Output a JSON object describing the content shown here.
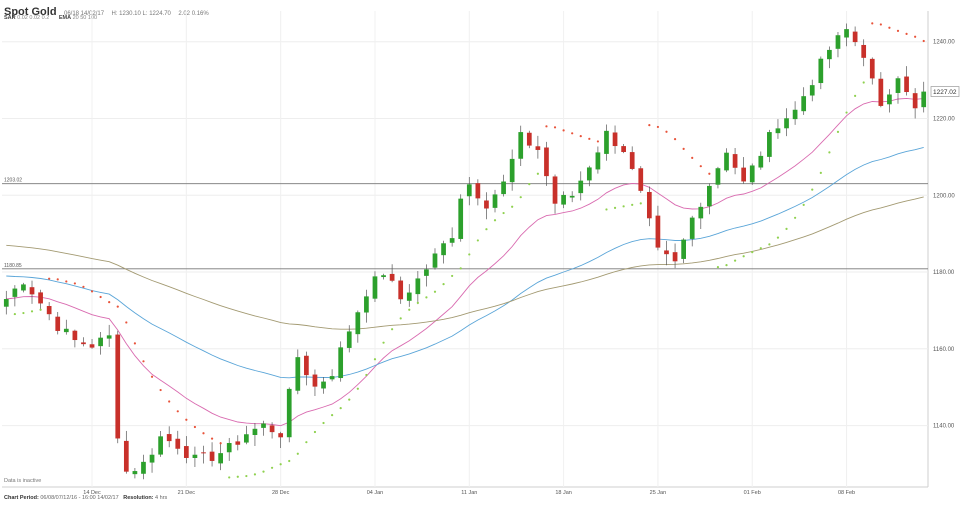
{
  "header": {
    "title": "Spot Gold",
    "timestamp": "06/18 14/02/17",
    "ohlc_text": "H: 1230.10  L: 1224.70",
    "change_text": "2.02 0.16%"
  },
  "studies": [
    {
      "name": "SAR",
      "params": "0.02  0.02  0.2"
    },
    {
      "name": "EMA",
      "params": "20  50  100"
    }
  ],
  "footer": {
    "period_label": "Chart Period:",
    "period_value": "06/08/07/12/16 - 16:00 14/02/17",
    "resolution_label": "Resolution:",
    "resolution_value": "4 hrs"
  },
  "inactive_note": "Data is inactive",
  "current_price_label": "1227.02",
  "colors": {
    "up": "#2ca02c",
    "down": "#c8302a",
    "sar_up": "#8fd14f",
    "sar_down": "#e8533a",
    "ema20": "#d96bb0",
    "ema50": "#5aa5d8",
    "ema100": "#a39a72",
    "hline": "#777777"
  },
  "chart_data": {
    "type": "candlestick",
    "title": "Spot Gold",
    "ylim": [
      1124,
      1248
    ],
    "y_ticks": [
      1140,
      1160,
      1180,
      1200,
      1220,
      1240
    ],
    "y_tick_labels": [
      "1140.00",
      "1160.00",
      "1180.00",
      "1200.00",
      "1220.00",
      "1240.00"
    ],
    "x_tick_labels": [
      "14 Dec",
      "21 Dec",
      "28 Dec",
      "04 Jan",
      "11 Jan",
      "18 Jan",
      "25 Jan",
      "01 Feb",
      "08 Feb"
    ],
    "x_tick_positions": [
      10,
      21,
      32,
      43,
      54,
      65,
      76,
      87,
      98
    ],
    "n_candles": 108,
    "horizontal_levels": [
      {
        "label": "1203.02",
        "value": 1203.02
      },
      {
        "label": "1180.85",
        "value": 1180.85
      }
    ],
    "current_price": 1227.02,
    "close_waypoints": [
      [
        0,
        1173
      ],
      [
        2,
        1178
      ],
      [
        4,
        1172
      ],
      [
        6,
        1166
      ],
      [
        8,
        1162
      ],
      [
        10,
        1161
      ],
      [
        12,
        1163
      ],
      [
        13,
        1138
      ],
      [
        14,
        1128
      ],
      [
        16,
        1130
      ],
      [
        18,
        1137
      ],
      [
        20,
        1135
      ],
      [
        22,
        1131
      ],
      [
        24,
        1132
      ],
      [
        26,
        1134
      ],
      [
        28,
        1138
      ],
      [
        30,
        1140
      ],
      [
        32,
        1138
      ],
      [
        34,
        1158
      ],
      [
        36,
        1150
      ],
      [
        38,
        1154
      ],
      [
        40,
        1165
      ],
      [
        42,
        1175
      ],
      [
        44,
        1180
      ],
      [
        46,
        1173
      ],
      [
        48,
        1178
      ],
      [
        50,
        1184
      ],
      [
        52,
        1190
      ],
      [
        53,
        1200
      ],
      [
        54,
        1203
      ],
      [
        56,
        1198
      ],
      [
        58,
        1203
      ],
      [
        60,
        1215
      ],
      [
        62,
        1212
      ],
      [
        64,
        1198
      ],
      [
        66,
        1200
      ],
      [
        68,
        1208
      ],
      [
        70,
        1216
      ],
      [
        72,
        1212
      ],
      [
        74,
        1200
      ],
      [
        76,
        1185
      ],
      [
        78,
        1182
      ],
      [
        80,
        1194
      ],
      [
        82,
        1203
      ],
      [
        84,
        1212
      ],
      [
        86,
        1203
      ],
      [
        88,
        1211
      ],
      [
        90,
        1219
      ],
      [
        92,
        1222
      ],
      [
        94,
        1230
      ],
      [
        96,
        1238
      ],
      [
        98,
        1243
      ],
      [
        100,
        1237
      ],
      [
        102,
        1222
      ],
      [
        104,
        1232
      ],
      [
        105,
        1228
      ],
      [
        106,
        1222
      ],
      [
        107,
        1227
      ]
    ]
  }
}
